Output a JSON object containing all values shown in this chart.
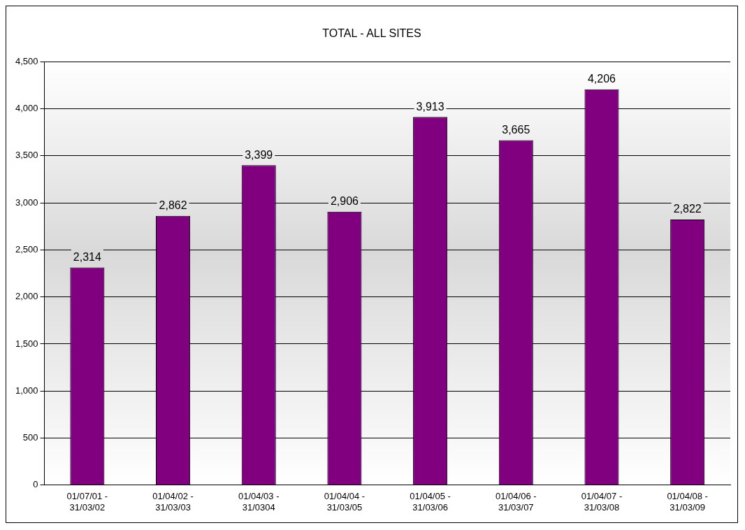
{
  "chart_data": {
    "type": "bar",
    "title": "TOTAL - ALL SITES",
    "categories": [
      "01/07/01 - 31/03/02",
      "01/04/02 - 31/03/03",
      "01/04/03 - 31/0304",
      "01/04/04 - 31/03/05",
      "01/04/05 - 31/03/06",
      "01/04/06 - 31/03/07",
      "01/04/07 - 31/03/08",
      "01/04/08 - 31/03/09"
    ],
    "values": [
      2314,
      2862,
      3399,
      2906,
      3913,
      3665,
      4206,
      2822
    ],
    "color": "#800080",
    "ylim": [
      0,
      4500
    ],
    "yticks": [
      {
        "value": 0,
        "label": "0"
      },
      {
        "value": 500,
        "label": "500"
      },
      {
        "value": 1000,
        "label": "1,000"
      },
      {
        "value": 1500,
        "label": "1,500"
      },
      {
        "value": 2000,
        "label": "2,000"
      },
      {
        "value": 2500,
        "label": "2,500"
      },
      {
        "value": 3000,
        "label": "3,000"
      },
      {
        "value": 3500,
        "label": "3,500"
      },
      {
        "value": 4000,
        "label": "4,000"
      },
      {
        "value": 4500,
        "label": "4,500"
      }
    ],
    "value_labels": [
      "2,314",
      "2,862",
      "3,399",
      "2,906",
      "3,913",
      "3,665",
      "4,206",
      "2,822"
    ],
    "grid": "y",
    "legend": false
  }
}
